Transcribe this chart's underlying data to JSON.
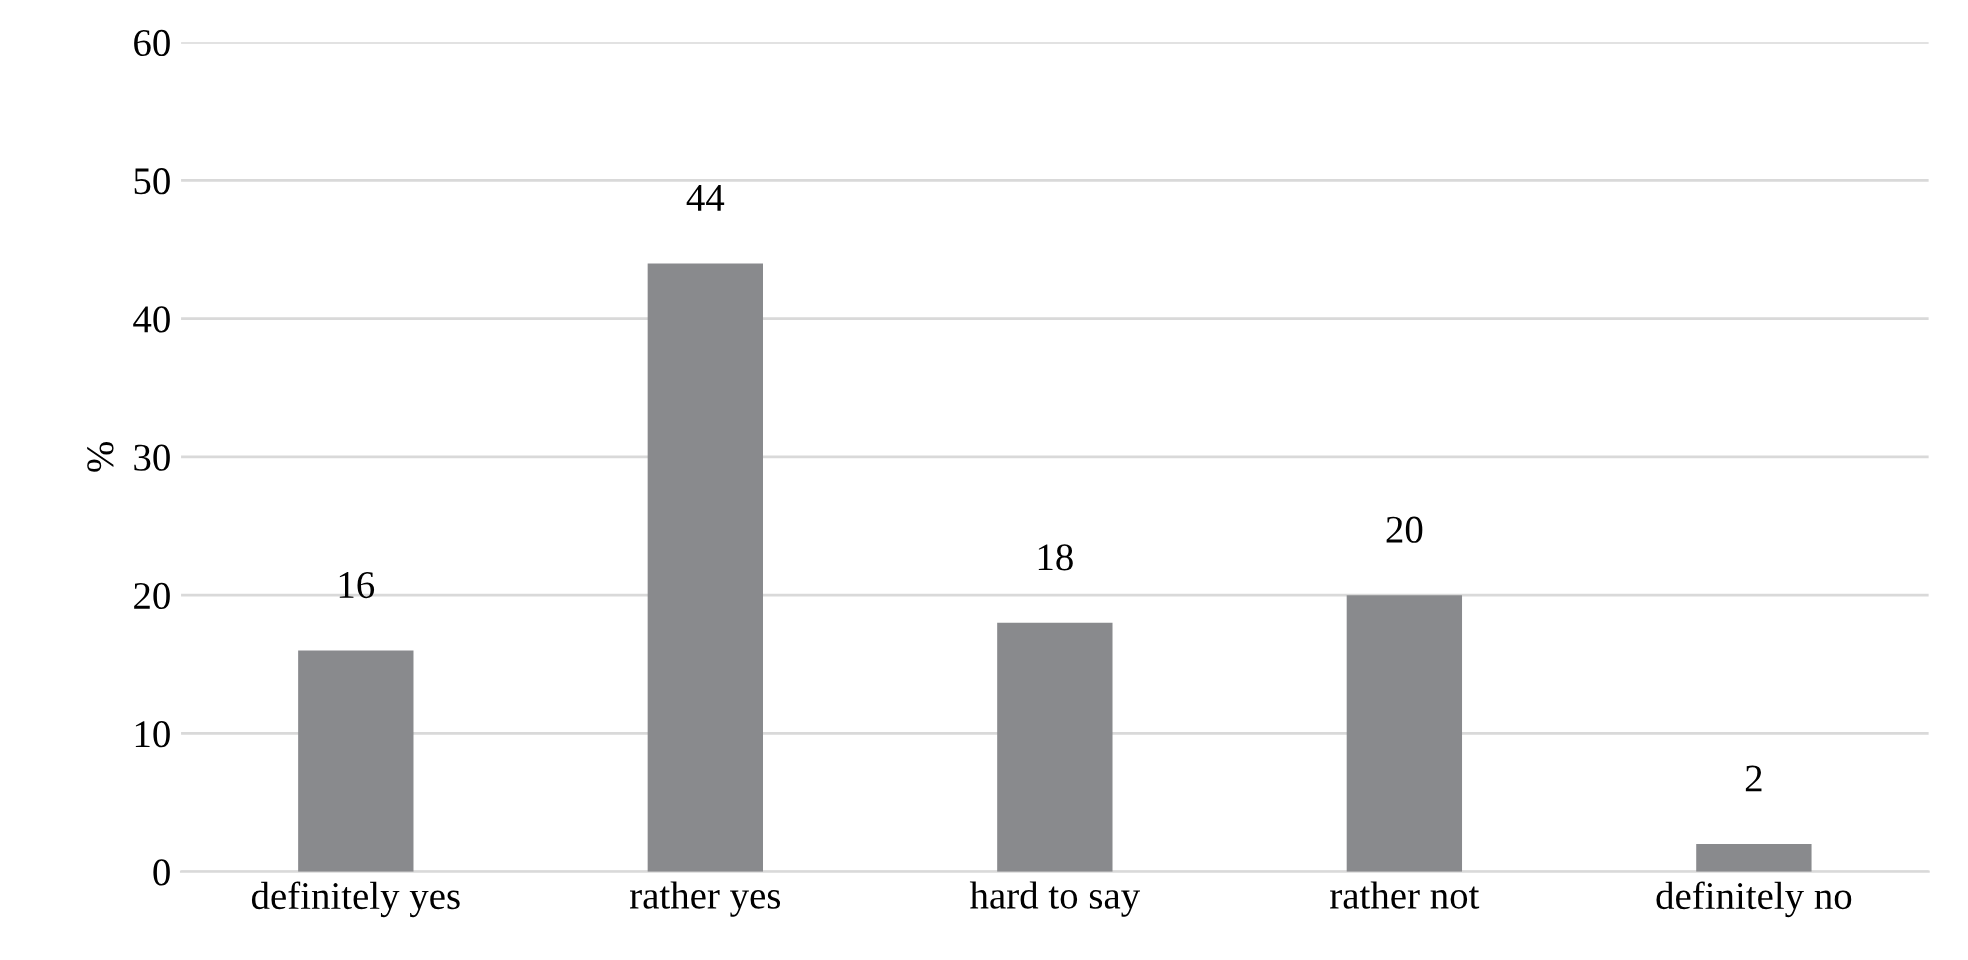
{
  "chart_data": {
    "type": "bar",
    "ylabel": "%",
    "categories": [
      "definitely yes",
      "rather yes",
      "hard to say",
      "rather not",
      "definitely no"
    ],
    "values": [
      16,
      44,
      18,
      20,
      2
    ],
    "color": "#898a8d",
    "ylim": [
      0,
      60
    ],
    "yticks": [
      0,
      10,
      20,
      30,
      40,
      50,
      60
    ],
    "grid": "y",
    "data_labels": true
  }
}
